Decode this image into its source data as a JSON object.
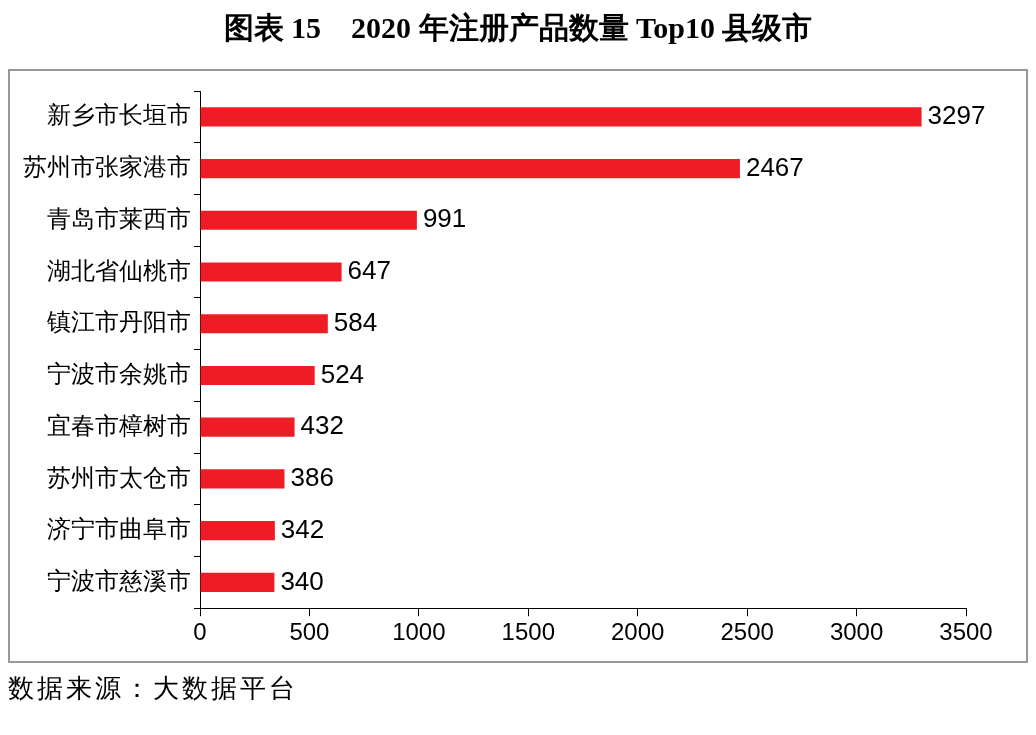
{
  "chart_data": {
    "type": "bar",
    "orientation": "horizontal",
    "title": "图表 15　2020 年注册产品数量 Top10 县级市",
    "categories": [
      "新乡市长垣市",
      "苏州市张家港市",
      "青岛市莱西市",
      "湖北省仙桃市",
      "镇江市丹阳市",
      "宁波市余姚市",
      "宜春市樟树市",
      "苏州市太仓市",
      "济宁市曲阜市",
      "宁波市慈溪市"
    ],
    "values": [
      3297,
      2467,
      991,
      647,
      584,
      524,
      432,
      386,
      342,
      340
    ],
    "color": "#ee1c25",
    "xlim": [
      0,
      3500
    ],
    "xticks": [
      0,
      500,
      1000,
      1500,
      2000,
      2500,
      3000,
      3500
    ],
    "grid": false,
    "data_labels": true,
    "annotations": [
      "数据来源：大数据平台"
    ]
  }
}
